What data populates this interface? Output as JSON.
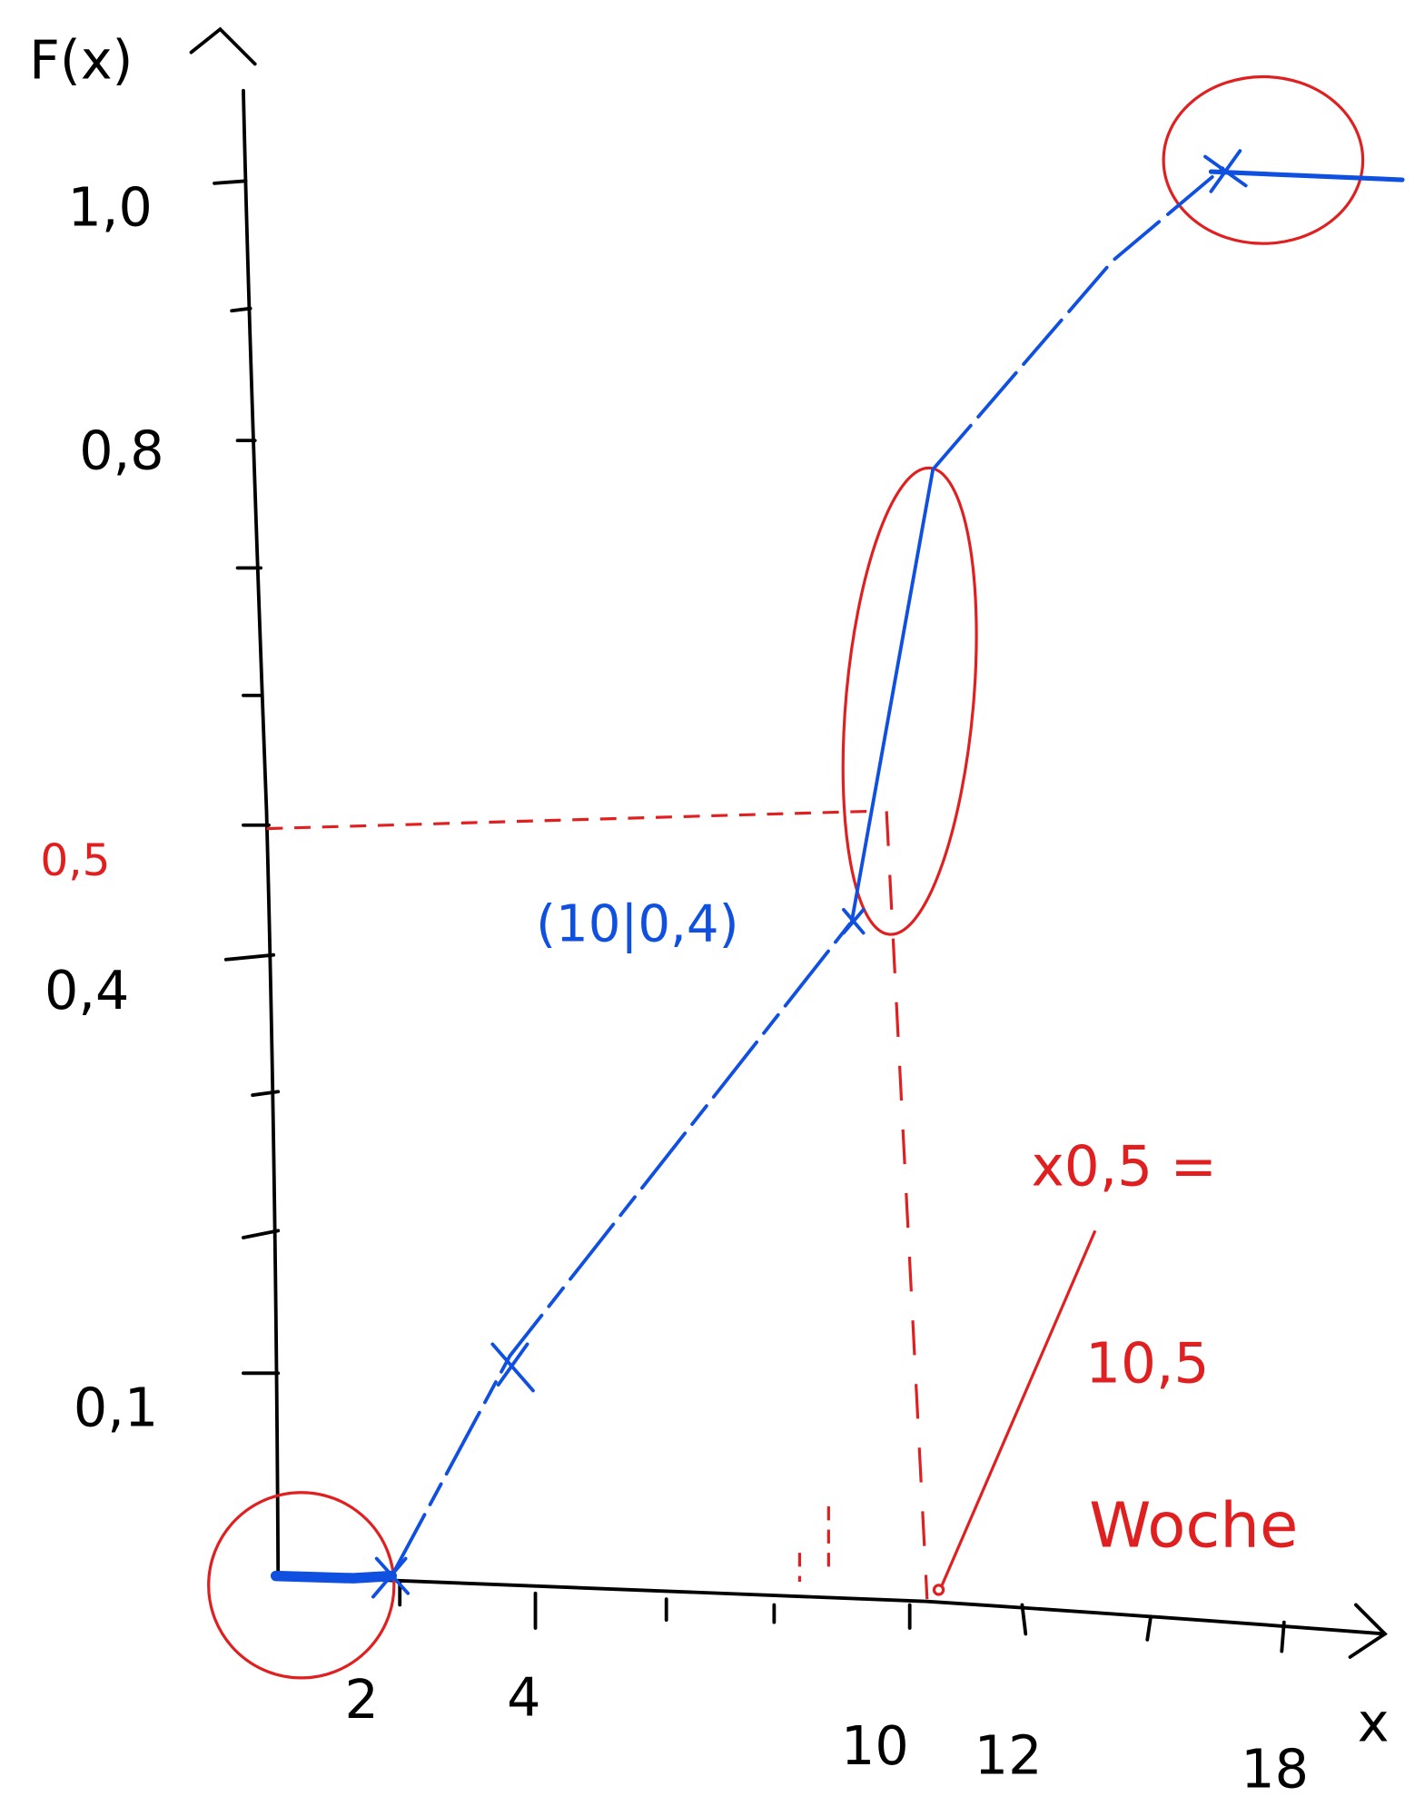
{
  "axes": {
    "y_title": "F(x)",
    "x_title": "x",
    "y_labels": [
      "1,0",
      "0,8",
      "0,4",
      "0,1"
    ],
    "x_labels": [
      "2",
      "4",
      "10",
      "12",
      "18"
    ]
  },
  "annotations": {
    "median_level": "0,5",
    "point": "(10|0,4)",
    "quantile": "x0,5 =",
    "quantile_value": "10,5",
    "unit": "Woche"
  }
}
